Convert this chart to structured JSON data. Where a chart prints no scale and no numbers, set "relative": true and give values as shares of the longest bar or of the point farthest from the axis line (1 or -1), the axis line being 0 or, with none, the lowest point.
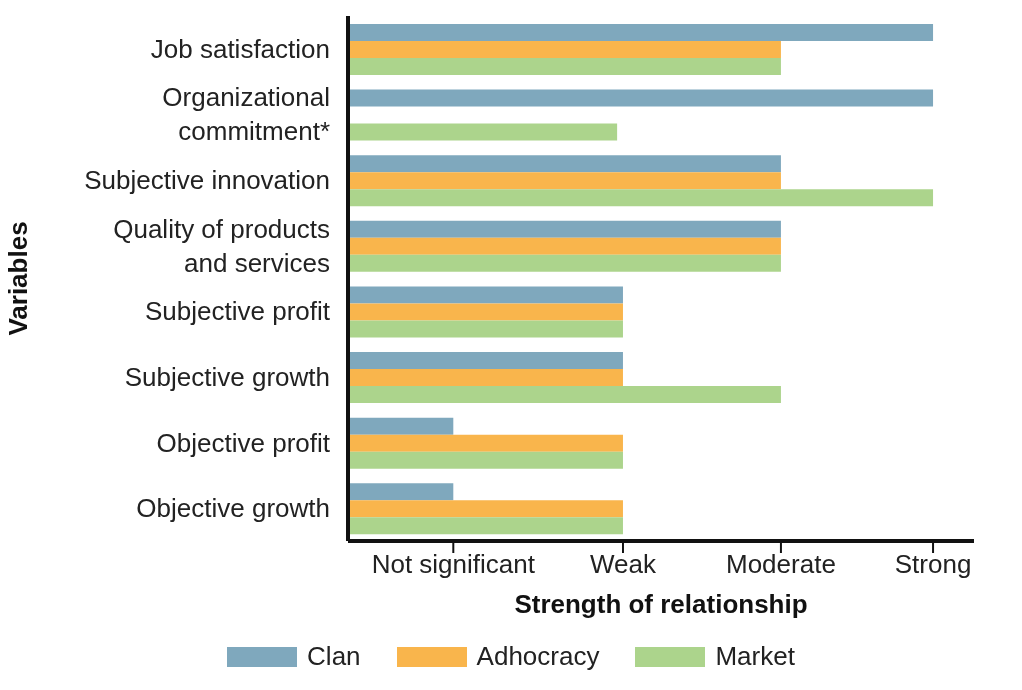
{
  "chart_data": {
    "type": "bar",
    "orientation": "horizontal",
    "relative": true,
    "xlabel": "Strength of relationship",
    "ylabel": "Variables",
    "categories": [
      "Job satisfaction",
      "Organizational commitment*",
      "Subjective innovation",
      "Quality of products and services",
      "Subjective profit",
      "Subjective growth",
      "Objective profit",
      "Objective growth"
    ],
    "series": [
      {
        "name": "Clan",
        "color": "#7fa8bd",
        "values": [
          1,
          1,
          0.74,
          0.74,
          0.47,
          0.47,
          0.18,
          0.18
        ]
      },
      {
        "name": "Adhocracy",
        "color": "#f9b54c",
        "values": [
          0.74,
          null,
          0.74,
          0.74,
          0.47,
          0.47,
          0.47,
          0.47
        ]
      },
      {
        "name": "Market",
        "color": "#acd48c",
        "values": [
          0.74,
          0.46,
          1,
          0.74,
          0.47,
          0.74,
          0.47,
          0.47
        ]
      }
    ],
    "annotations": [
      {
        "text": "Not significant",
        "x": 0.18
      },
      {
        "text": "Weak",
        "x": 0.47
      },
      {
        "text": "Moderate",
        "x": 0.74
      },
      {
        "text": "Strong",
        "x": 1
      }
    ],
    "grid": false,
    "legend": "bottom"
  }
}
